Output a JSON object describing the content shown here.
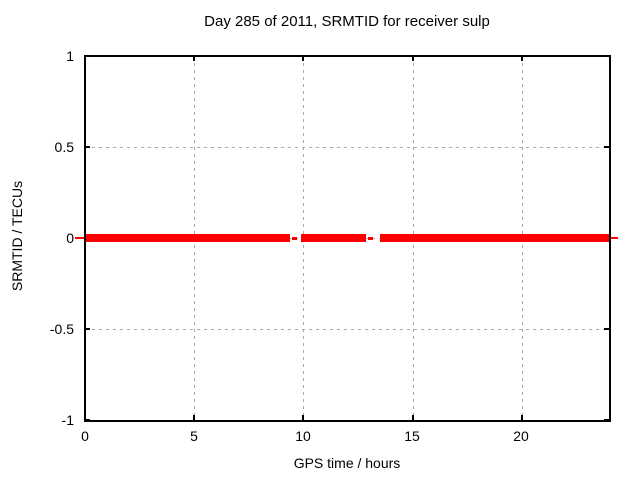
{
  "chart": {
    "title": "Day 285 of 2011, SRMTID for receiver sulp",
    "xlabel": "GPS time / hours",
    "ylabel": "SRMTID / TECUs",
    "x_tick_labels": [
      "0",
      "5",
      "10",
      "15",
      "20"
    ],
    "y_tick_labels": [
      "1",
      "0.5",
      "0",
      "-0.5",
      "-1"
    ]
  },
  "chart_data": {
    "type": "line",
    "title": "Day 285 of 2011, SRMTID for receiver sulp",
    "xlabel": "GPS time / hours",
    "ylabel": "SRMTID / TECUs",
    "xlim": [
      0,
      24
    ],
    "ylim": [
      -1,
      1
    ],
    "x_tick_values": [
      0,
      5,
      10,
      15,
      20
    ],
    "y_tick_values": [
      1,
      0.5,
      0,
      -0.5,
      -1
    ],
    "grid": true,
    "legend": "none",
    "series": [
      {
        "name": "SRMTID",
        "color": "#ff0000",
        "constant_value": 0,
        "segments_hours": [
          [
            0,
            9.4
          ],
          [
            9.9,
            12.85
          ],
          [
            13.5,
            24
          ]
        ],
        "isolated_points_hours": [
          9.55,
          13.05
        ]
      }
    ]
  },
  "colors": {
    "line": "#ff0000",
    "grid": "#a8a8a8",
    "border": "#000000",
    "background": "#ffffff",
    "text": "#000000"
  }
}
